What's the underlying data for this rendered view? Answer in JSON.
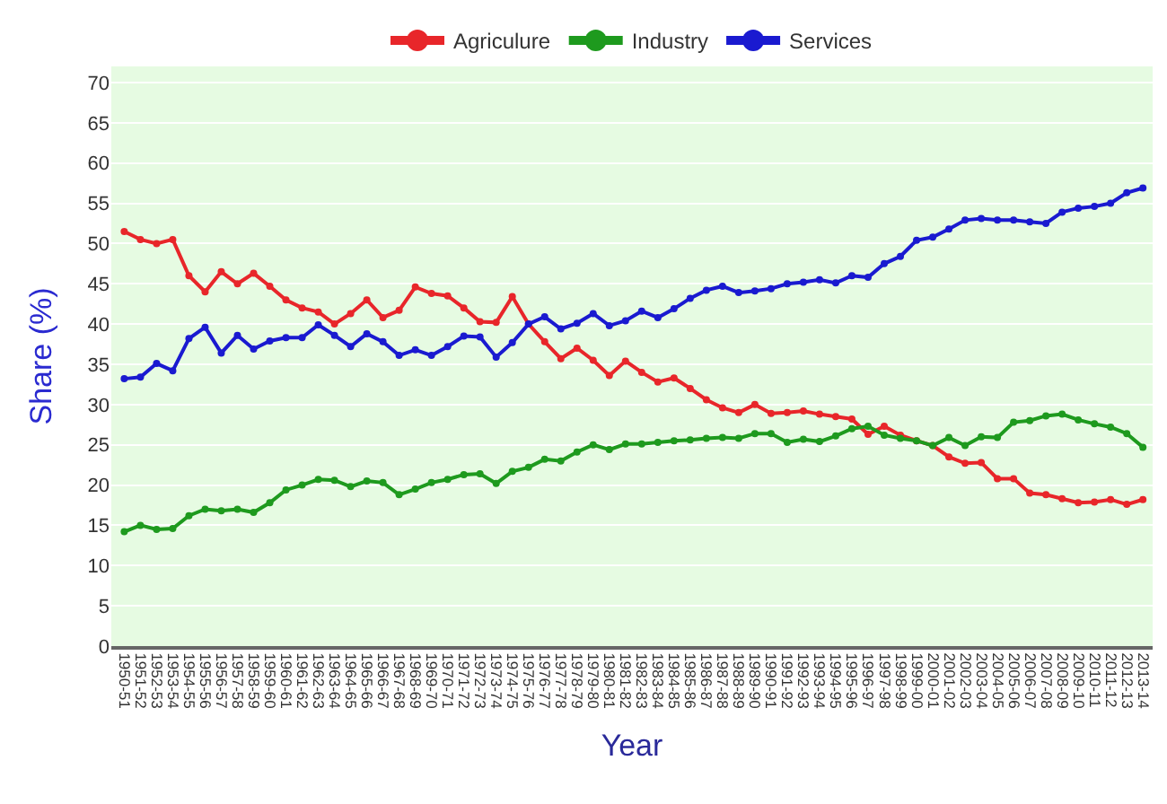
{
  "chart_data": {
    "type": "line",
    "xlabel": "Year",
    "ylabel": "Share (%)",
    "categories": [
      "1950-51",
      "1951-52",
      "1952-53",
      "1953-54",
      "1954-55",
      "1955-56",
      "1956-57",
      "1957-58",
      "1958-59",
      "1959-60",
      "1960-61",
      "1961-62",
      "1962-63",
      "1963-64",
      "1964-65",
      "1965-66",
      "1966-67",
      "1967-68",
      "1968-69",
      "1969-70",
      "1970-71",
      "1971-72",
      "1972-73",
      "1973-74",
      "1974-75",
      "1975-76",
      "1976-77",
      "1977-78",
      "1978-79",
      "1979-80",
      "1980-81",
      "1981-82",
      "1982-83",
      "1983-84",
      "1984-85",
      "1985-86",
      "1986-87",
      "1987-88",
      "1988-89",
      "1989-90",
      "1990-91",
      "1991-92",
      "1992-93",
      "1993-94",
      "1994-95",
      "1995-96",
      "1996-97",
      "1997-98",
      "1998-99",
      "1999-00",
      "2000-01",
      "2001-02",
      "2002-03",
      "2003-04",
      "2004-05",
      "2005-06",
      "2006-07",
      "2007-08",
      "2008-09",
      "2009-10",
      "2010-11",
      "2011-12",
      "2012-13",
      "2013-14"
    ],
    "series": [
      {
        "name": "Agriculure",
        "color": "#e8262a",
        "values": [
          51.5,
          50.5,
          50,
          50.5,
          46,
          44,
          46.5,
          45,
          46.3,
          44.7,
          43,
          42,
          41.5,
          40,
          41.3,
          43,
          40.8,
          41.7,
          44.6,
          43.8,
          43.5,
          42,
          40.3,
          40.2,
          43.4,
          40,
          37.8,
          35.7,
          37,
          35.5,
          33.6,
          35.4,
          34,
          32.8,
          33.3,
          32,
          30.6,
          29.6,
          29,
          30,
          28.9,
          29,
          29.2,
          28.8,
          28.5,
          28.2,
          26.3,
          27.3,
          26.2,
          25.5,
          24.9,
          23.5,
          22.7,
          22.8,
          20.8,
          20.8,
          19,
          18.8,
          18.3,
          17.8,
          17.9,
          18.2,
          17.6,
          18.2
        ]
      },
      {
        "name": "Industry",
        "color": "#1e9a1e",
        "values": [
          14.2,
          15,
          14.5,
          14.6,
          16.2,
          17,
          16.8,
          17,
          16.6,
          17.8,
          19.4,
          20,
          20.7,
          20.6,
          19.8,
          20.5,
          20.3,
          18.8,
          19.5,
          20.3,
          20.7,
          21.3,
          21.4,
          20.2,
          21.7,
          22.2,
          23.2,
          23,
          24.1,
          25,
          24.4,
          25.1,
          25.1,
          25.3,
          25.5,
          25.6,
          25.8,
          25.9,
          25.8,
          26.4,
          26.4,
          25.3,
          25.7,
          25.4,
          26.1,
          27,
          27.3,
          26.2,
          25.8,
          25.5,
          24.9,
          25.9,
          24.9,
          26,
          25.9,
          27.8,
          28,
          28.6,
          28.8,
          28.1,
          27.6,
          27.2,
          26.4,
          24.7
        ]
      },
      {
        "name": "Services",
        "color": "#1a1ad0",
        "values": [
          33.2,
          33.4,
          35.1,
          34.2,
          38.2,
          39.6,
          36.4,
          38.6,
          36.9,
          37.9,
          38.3,
          38.3,
          39.9,
          38.6,
          37.2,
          38.8,
          37.8,
          36.1,
          36.8,
          36.1,
          37.2,
          38.5,
          38.4,
          35.9,
          37.7,
          40,
          40.9,
          39.4,
          40.1,
          41.3,
          39.8,
          40.4,
          41.6,
          40.8,
          41.9,
          43.2,
          44.2,
          44.7,
          43.9,
          44.1,
          44.4,
          45,
          45.2,
          45.5,
          45.1,
          46,
          45.8,
          47.5,
          48.4,
          50.4,
          50.8,
          51.8,
          52.9,
          53.1,
          52.9,
          52.9,
          52.7,
          52.5,
          53.9,
          54.4,
          54.6,
          55,
          56.3,
          56.9
        ]
      }
    ],
    "ylim": [
      0,
      72
    ],
    "yticks": [
      0,
      5,
      10,
      15,
      20,
      25,
      30,
      35,
      40,
      45,
      50,
      55,
      60,
      65,
      70
    ],
    "grid": "y",
    "legend": "top",
    "marker": "circle",
    "line_style": "solid"
  }
}
